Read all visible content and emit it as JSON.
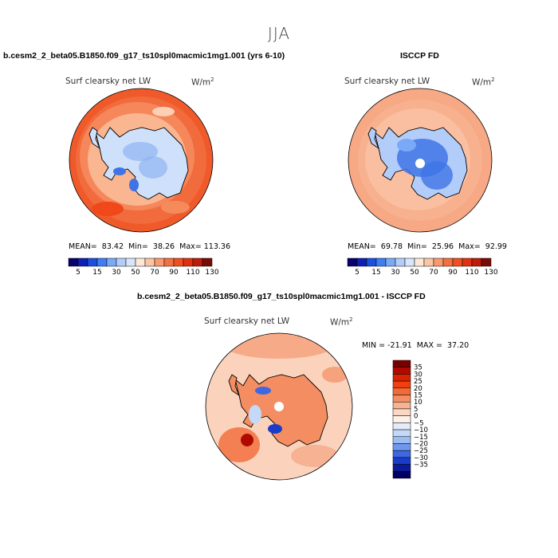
{
  "title": "JJA",
  "panels": {
    "model": {
      "case": "b.cesm2_2_beta05.B1850.f09_g17_ts10spl0macmic1mg1.001 (yrs 6-10)",
      "variable": "Surf clearsky net LW",
      "units": "W/m",
      "units_exp": "2",
      "stats": "MEAN=  83.42  Min=  38.26  Max= 113.36"
    },
    "obs": {
      "case": "ISCCP FD",
      "variable": "Surf clearsky net LW",
      "units": "W/m",
      "units_exp": "2",
      "stats": "MEAN=  69.78  Min=  25.96  Max=  92.99"
    },
    "diff": {
      "case": "b.cesm2_2_beta05.B1850.f09_g17_ts10spl0macmic1mg1.001 - ISCCP FD",
      "variable": "Surf clearsky net LW",
      "units": "W/m",
      "units_exp": "2",
      "stats": "MIN = -21.91  MAX =  37.20"
    }
  },
  "colorbars": {
    "main": {
      "labels": [
        "5",
        "15",
        "30",
        "50",
        "70",
        "90",
        "110",
        "130"
      ],
      "colors": [
        "#08006e",
        "#0c20b4",
        "#1a4fe0",
        "#3f7ef2",
        "#7aaaf7",
        "#b2cdfa",
        "#d8e6fb",
        "#fde8d8",
        "#fbc4a4",
        "#f89a6e",
        "#f47040",
        "#f05020",
        "#e03010",
        "#c01a08",
        "#7a0a04"
      ]
    },
    "diff": {
      "labels": [
        "35",
        "30",
        "25",
        "20",
        "15",
        "10",
        "5",
        "0",
        "−5",
        "−10",
        "−15",
        "−20",
        "−25",
        "−30",
        "−35"
      ],
      "colors": [
        "#7a0000",
        "#b00a00",
        "#d82200",
        "#f04010",
        "#f26a38",
        "#f48e62",
        "#f6b292",
        "#fad8c4",
        "#fdf0e6",
        "#e2ecfa",
        "#c4d8f8",
        "#9cbcf4",
        "#6e98ee",
        "#3e68e2",
        "#1a3cc8",
        "#0a1a98",
        "#00005e"
      ]
    }
  },
  "colors": {
    "ocean_model": "#f05a2a",
    "ocean_obs": "#f7a884",
    "ice_light": "#cfe0fa",
    "ice_mid": "#8fb4f2",
    "ice_deep": "#3f74e6",
    "diff_bg": "#fbd3bd",
    "coast": "#000000"
  }
}
